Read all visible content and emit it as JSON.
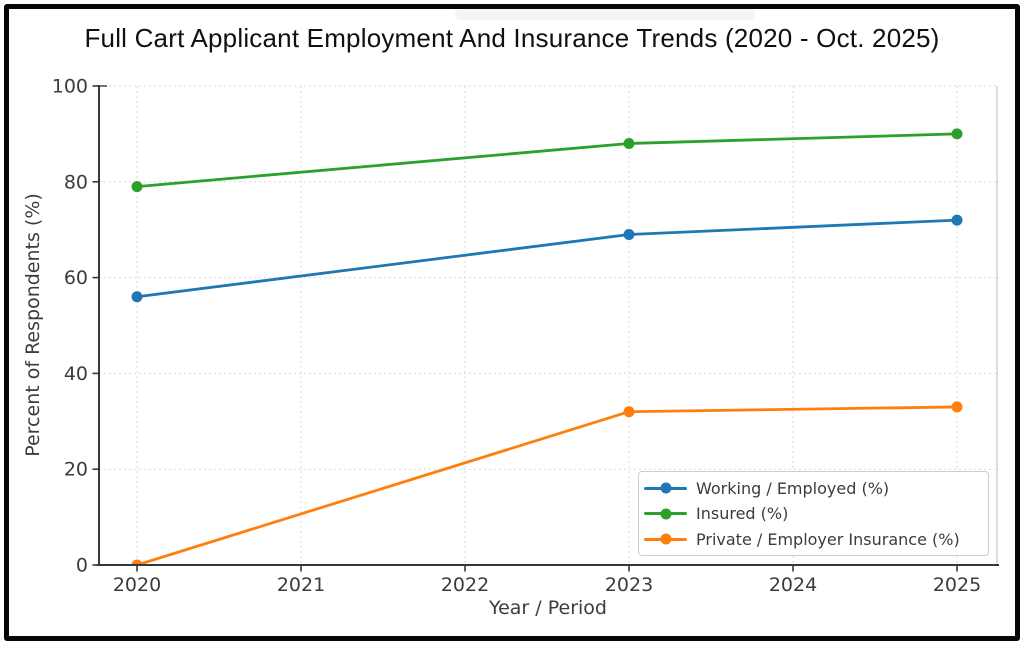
{
  "chart_data": {
    "type": "line",
    "title": "Full Cart Applicant Employment And Insurance Trends (2020 - Oct. 2025)",
    "xlabel": "Year / Period",
    "ylabel": "Percent of Respondents (%)",
    "x": [
      2020,
      2023,
      2025
    ],
    "x_ticks": [
      2020,
      2021,
      2022,
      2023,
      2024,
      2025
    ],
    "y_ticks": [
      0,
      20,
      40,
      60,
      80,
      100
    ],
    "ylim": [
      0,
      100
    ],
    "grid": true,
    "grid_style": "dashed",
    "legend_position": "lower right",
    "series": [
      {
        "name": "Working / Employed (%)",
        "color": "#1f77b4",
        "values": [
          56,
          69,
          72
        ]
      },
      {
        "name": "Insured (%)",
        "color": "#2ca02c",
        "values": [
          79,
          88,
          90
        ]
      },
      {
        "name": "Private / Employer Insurance (%)",
        "color": "#ff7f0e",
        "values": [
          0,
          32,
          33
        ]
      }
    ]
  },
  "style_colors": {
    "axis": "#38383b",
    "tick_label": "#3c3c3c",
    "grid": "#d9d9d9",
    "frame_border": "#070707"
  }
}
